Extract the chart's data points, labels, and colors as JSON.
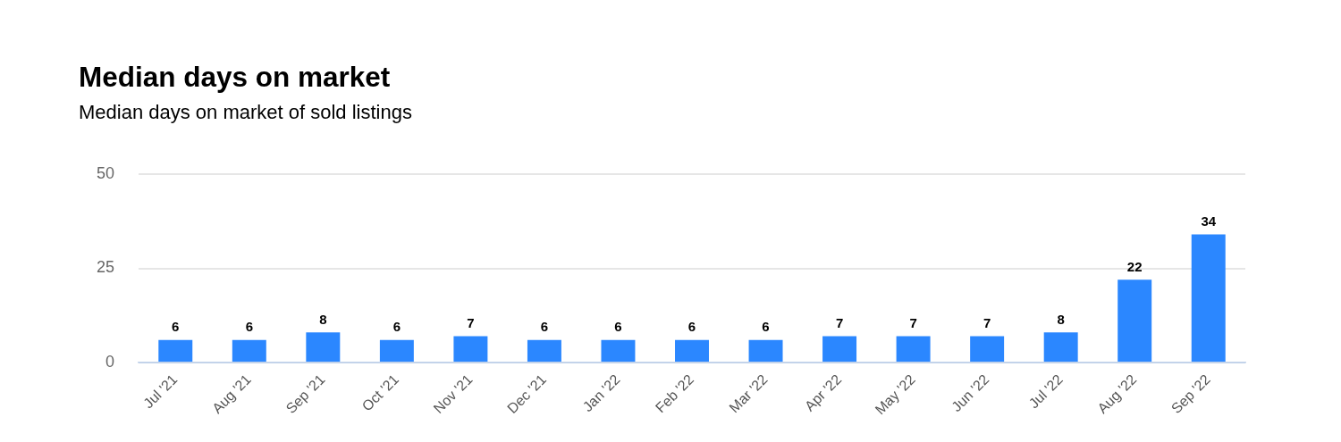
{
  "chart_data": {
    "type": "bar",
    "title": "Median days on market",
    "subtitle": "Median days on market of sold listings",
    "categories": [
      "Jul '21",
      "Aug '21",
      "Sep '21",
      "Oct '21",
      "Nov '21",
      "Dec '21",
      "Jan '22",
      "Feb '22",
      "Mar '22",
      "Apr '22",
      "May '22",
      "Jun '22",
      "Jul '22",
      "Aug '22",
      "Sep '22"
    ],
    "values": [
      6,
      6,
      8,
      6,
      7,
      6,
      6,
      6,
      6,
      7,
      7,
      7,
      8,
      22,
      34
    ],
    "color": "#2b87ff",
    "ylim": [
      0,
      50
    ],
    "yticks": [
      0,
      25,
      50
    ],
    "grid": "y",
    "data_labels": true
  }
}
